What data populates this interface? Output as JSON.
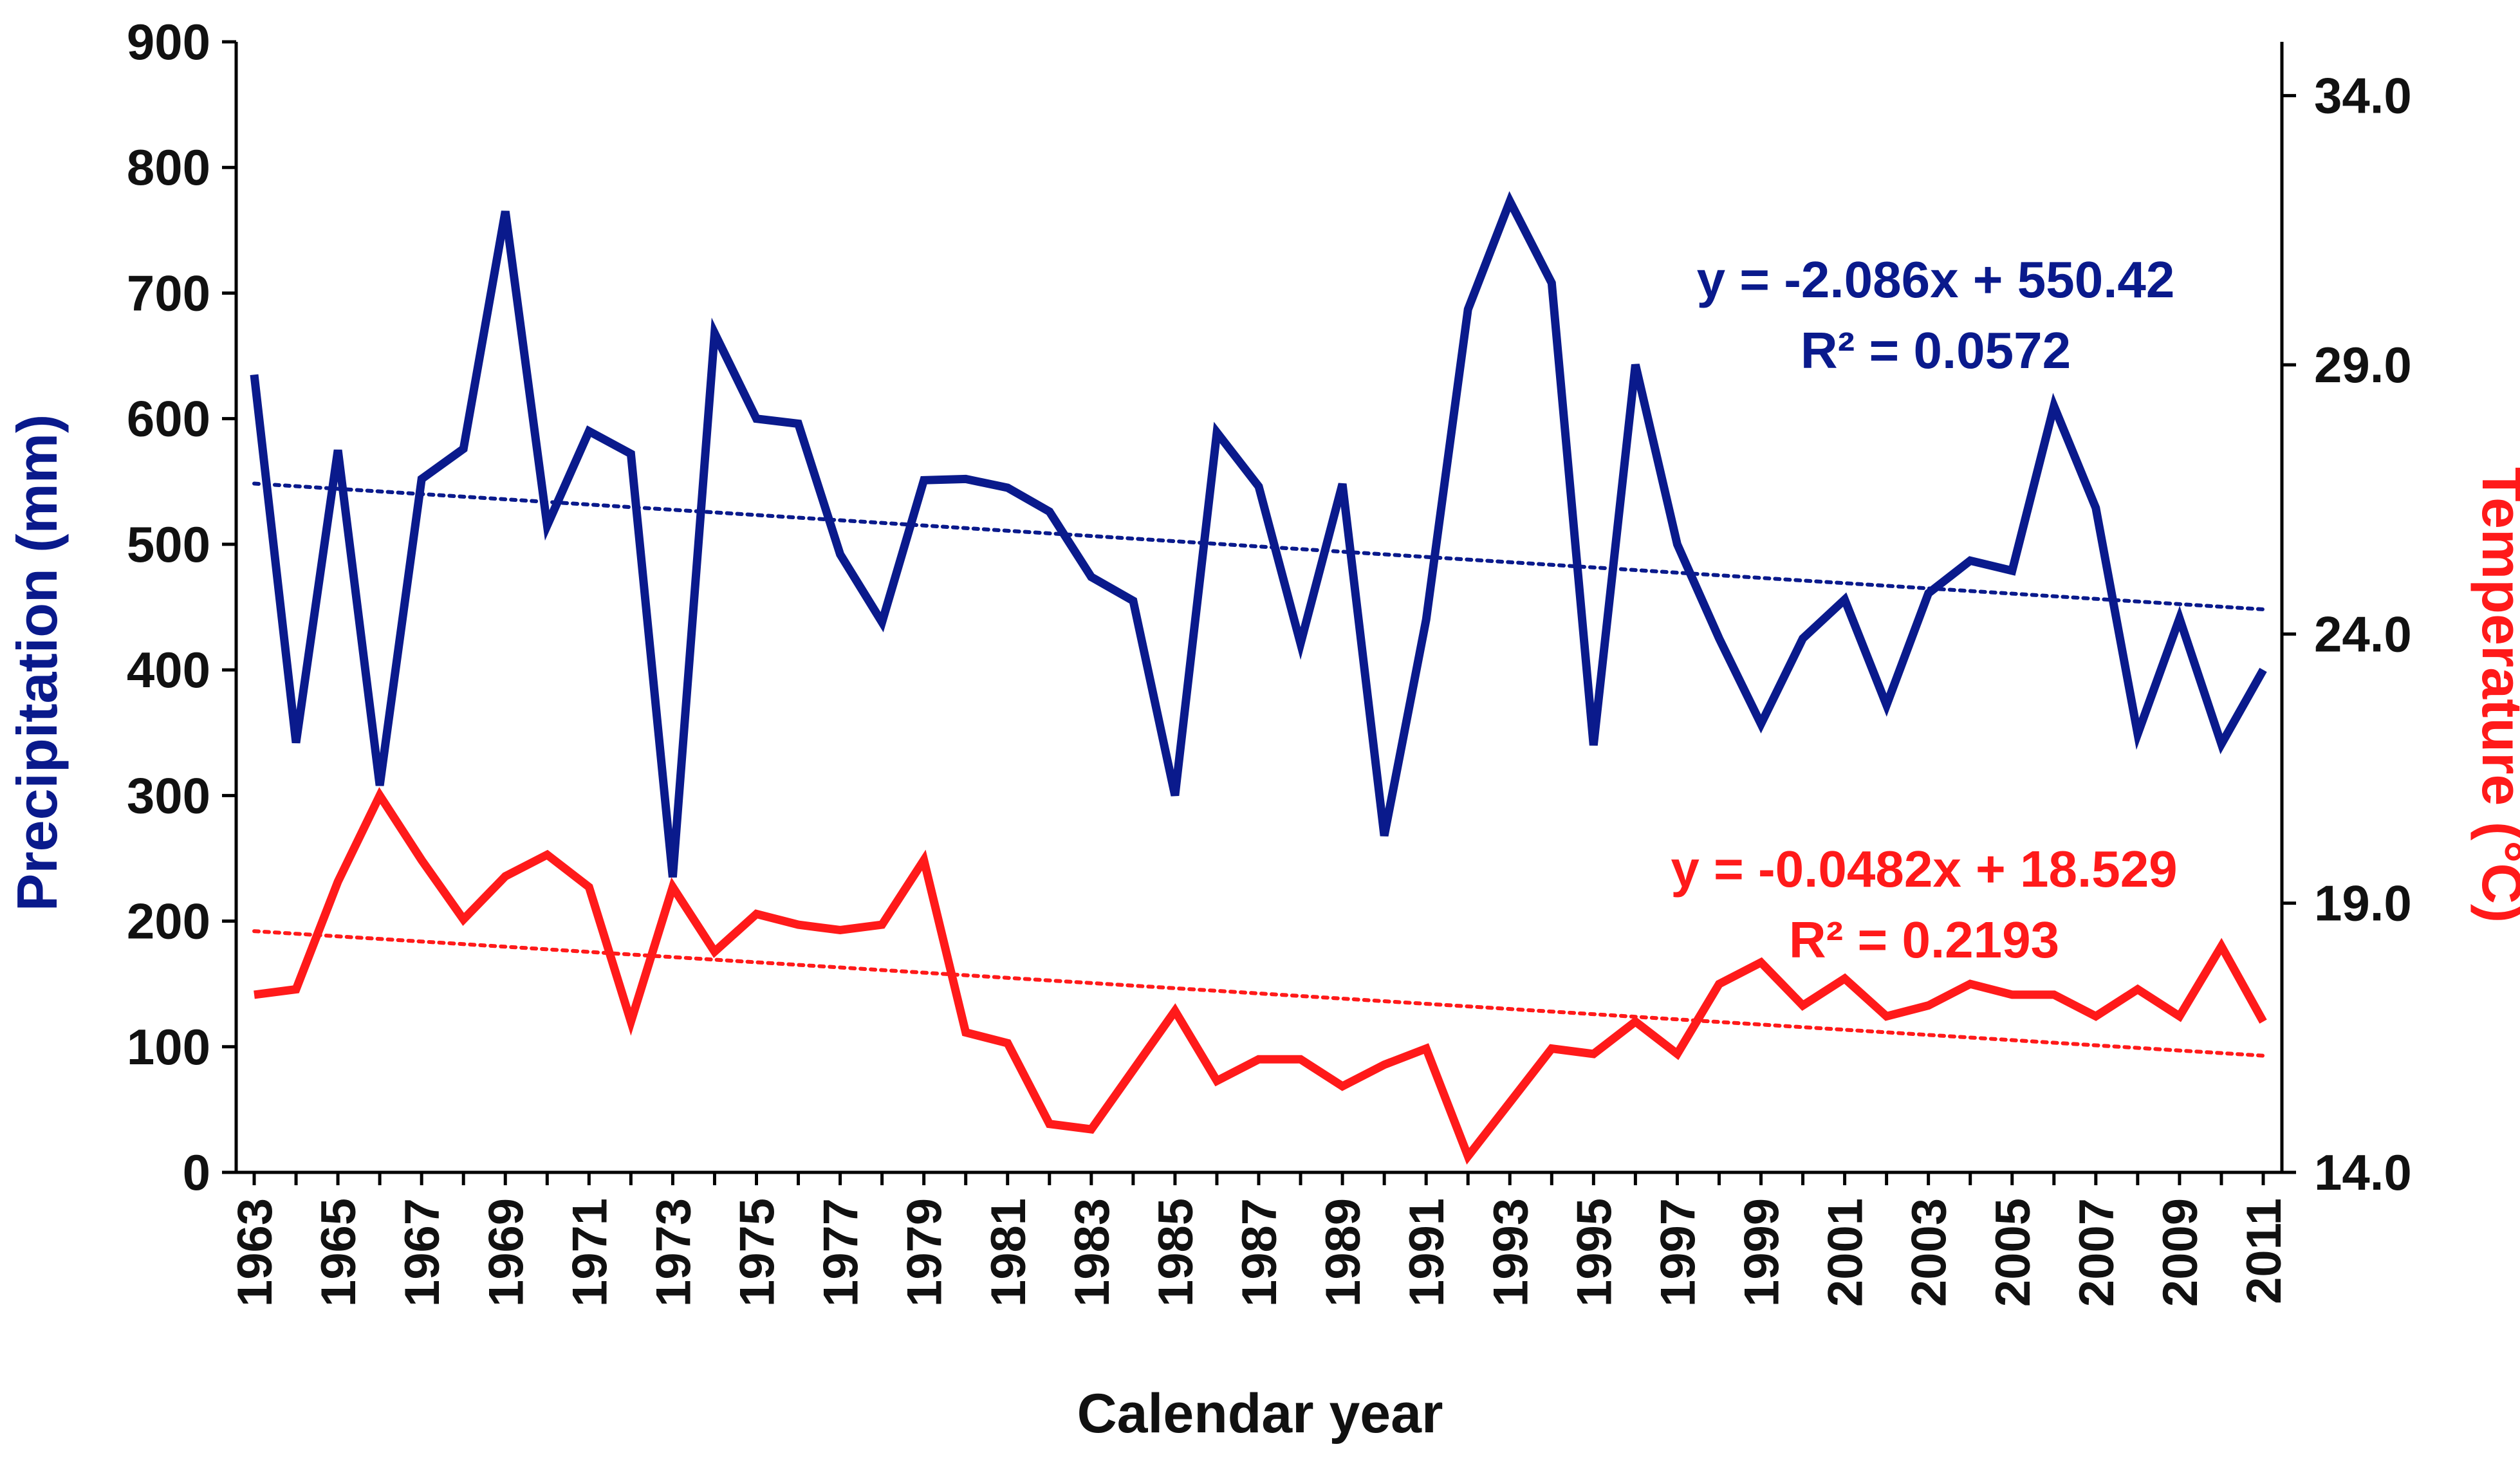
{
  "chart_data": {
    "type": "line",
    "title": "",
    "xlabel": "Calendar year",
    "ylabel_left": "Precipitation (mm)",
    "ylabel_right": "Temperature (°C)",
    "x": [
      1963,
      1964,
      1965,
      1966,
      1967,
      1968,
      1969,
      1970,
      1971,
      1972,
      1973,
      1974,
      1975,
      1976,
      1977,
      1978,
      1979,
      1980,
      1981,
      1982,
      1983,
      1984,
      1985,
      1986,
      1987,
      1988,
      1989,
      1990,
      1991,
      1992,
      1993,
      1994,
      1995,
      1996,
      1997,
      1998,
      1999,
      2000,
      2001,
      2002,
      2003,
      2004,
      2005,
      2006,
      2007,
      2008,
      2009,
      2010,
      2011
    ],
    "x_tick_labels": [
      "1963",
      "1965",
      "1967",
      "1969",
      "1971",
      "1973",
      "1975",
      "1977",
      "1979",
      "1981",
      "1983",
      "1985",
      "1987",
      "1989",
      "1991",
      "1993",
      "1995",
      "1997",
      "1999",
      "2001",
      "2003",
      "2005",
      "2007",
      "2009",
      "2011"
    ],
    "ylim_left": [
      0,
      900
    ],
    "yticks_left": [
      "0",
      "100",
      "200",
      "300",
      "400",
      "500",
      "600",
      "700",
      "800",
      "900"
    ],
    "ylim_right": [
      14.0,
      35.0
    ],
    "yticks_right": [
      "14.0",
      "19.0",
      "24.0",
      "29.0",
      "34.0"
    ],
    "grid": false,
    "series": [
      {
        "name": "Precipitation",
        "axis": "left",
        "color": "#0a1a8c",
        "values": [
          635,
          342,
          575,
          308,
          552,
          576,
          765,
          515,
          590,
          572,
          235,
          668,
          600,
          596,
          492,
          438,
          551,
          552,
          545,
          526,
          474,
          455,
          300,
          589,
          546,
          421,
          548,
          268,
          440,
          687,
          773,
          708,
          340,
          643,
          500,
          425,
          357,
          425,
          456,
          372,
          461,
          487,
          479,
          610,
          529,
          349,
          441,
          341,
          400
        ],
        "trendline": {
          "slope": -2.086,
          "intercept": 550.42,
          "label": "y = -2.086x + 550.42",
          "r2_label": "R² = 0.0572"
        }
      },
      {
        "name": "Temperature",
        "axis": "right",
        "color": "#ff1a1a",
        "values": [
          17.3,
          17.4,
          19.4,
          21.0,
          19.8,
          18.7,
          19.5,
          19.9,
          19.3,
          16.8,
          19.3,
          18.1,
          18.8,
          18.6,
          18.5,
          18.6,
          19.8,
          16.6,
          16.4,
          14.9,
          14.8,
          15.9,
          17.0,
          15.7,
          16.1,
          16.1,
          15.6,
          16.0,
          16.3,
          14.3,
          15.3,
          16.3,
          16.2,
          16.8,
          16.2,
          17.5,
          17.9,
          17.1,
          17.6,
          16.9,
          17.1,
          17.5,
          17.3,
          17.3,
          16.9,
          17.4,
          16.9,
          18.2,
          16.8
        ],
        "trendline": {
          "slope": -0.0482,
          "intercept": 18.529,
          "label": "y = -0.0482x + 18.529",
          "r2_label": "R² = 0.2193"
        }
      }
    ]
  }
}
